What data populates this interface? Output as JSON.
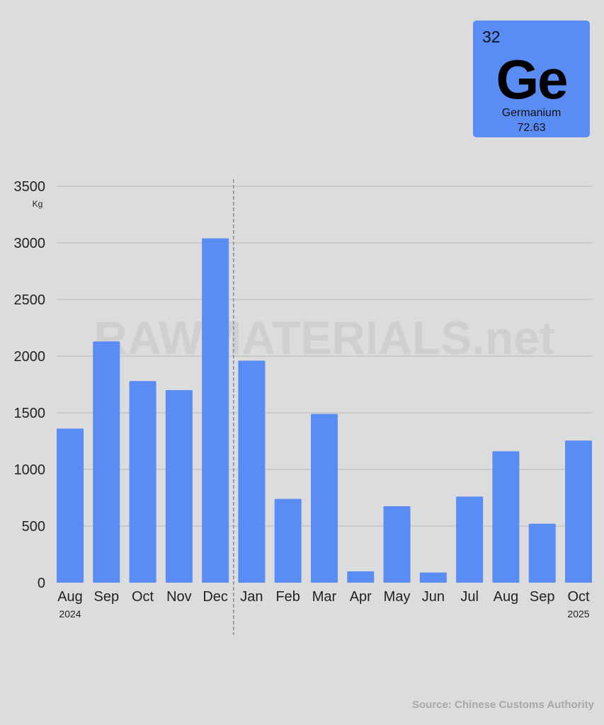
{
  "element_tile": {
    "atomic_number": "32",
    "symbol": "Ge",
    "name": "Germanium",
    "atomic_mass": "72.63",
    "color": "#5a8cf5"
  },
  "watermark": "RAWMATERIALS.net",
  "source": "Source: Chinese Customs Authority",
  "chart_data": {
    "type": "bar",
    "title": "",
    "xlabel": "",
    "ylabel": "Kg",
    "ylim": [
      0,
      3500
    ],
    "yticks": [
      0,
      500,
      1000,
      1500,
      2000,
      2500,
      3000,
      3500
    ],
    "grid": true,
    "bar_color": "#5a8cf5",
    "categories": [
      "Aug",
      "Sep",
      "Oct",
      "Nov",
      "Dec",
      "Jan",
      "Feb",
      "Mar",
      "Apr",
      "May",
      "Jun",
      "Jul",
      "Aug",
      "Sep",
      "Oct"
    ],
    "year_labels": [
      {
        "index": 0,
        "text": "2024"
      },
      {
        "index": 14,
        "text": "2025"
      }
    ],
    "year_divider_after_index": 4,
    "values": [
      1360,
      2130,
      1780,
      1700,
      3040,
      1960,
      740,
      1490,
      100,
      675,
      90,
      760,
      1160,
      520,
      1255
    ]
  }
}
